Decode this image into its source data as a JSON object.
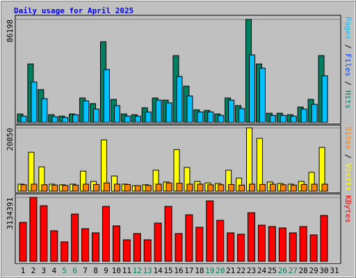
{
  "title": "Daily usage for April 2025",
  "chart_data": [
    {
      "type": "bar",
      "ylim": [
        0,
        86198
      ],
      "yticks": [
        86198
      ],
      "grid": true,
      "legend_separator": " / ",
      "legend": [
        {
          "name": "Pages",
          "color": "#00c0ff"
        },
        {
          "name": "Files",
          "color": "#0040ff"
        },
        {
          "name": "Hits",
          "color": "#008060"
        }
      ],
      "series": [
        {
          "name": "Hits",
          "color": "#008060",
          "values": [
            7000,
            48900,
            27400,
            6400,
            5200,
            7000,
            20400,
            15700,
            67500,
            19200,
            7000,
            6400,
            12200,
            20400,
            18600,
            55900,
            30300,
            10500,
            9900,
            7000,
            20400,
            14000,
            86198,
            48900,
            7600,
            7600,
            6400,
            12800,
            19200,
            55900,
            null
          ]
        },
        {
          "name": "Pages",
          "color": "#00c0ff",
          "values": [
            5200,
            33800,
            19800,
            4700,
            4100,
            6400,
            18000,
            11100,
            44300,
            14000,
            5200,
            5200,
            8700,
            18600,
            16300,
            38400,
            22100,
            8700,
            8700,
            5800,
            18600,
            11600,
            56500,
            45400,
            5800,
            5800,
            5200,
            11100,
            15100,
            39000,
            null
          ]
        }
      ]
    },
    {
      "type": "bar",
      "ylim": [
        0,
        20850
      ],
      "yticks": [
        20850
      ],
      "grid": true,
      "legend_separator": " / ",
      "legend": [
        {
          "name": "Sites",
          "color": "#ff8000"
        },
        {
          "name": "Visits",
          "color": "#ffff00"
        }
      ],
      "series": [
        {
          "name": "Visits",
          "color": "#ffff00",
          "values": [
            2300,
            12800,
            8000,
            2300,
            2100,
            2300,
            6600,
            3200,
            16900,
            5000,
            2300,
            1800,
            2100,
            6900,
            3000,
            13700,
            7800,
            3200,
            2700,
            2500,
            6900,
            4300,
            20850,
            17400,
            3000,
            2500,
            2300,
            3200,
            6200,
            14400,
            null
          ]
        },
        {
          "name": "Sites",
          "color": "#ff8000",
          "values": [
            2100,
            2300,
            2100,
            2000,
            1900,
            2000,
            2300,
            2200,
            2700,
            2300,
            2200,
            1800,
            1900,
            2300,
            2700,
            2600,
            2300,
            2300,
            2100,
            2100,
            2200,
            2000,
            2300,
            2200,
            2300,
            2100,
            2000,
            2200,
            2300,
            2300,
            null
          ]
        }
      ]
    },
    {
      "type": "bar",
      "ylim": [
        0,
        3134391
      ],
      "yticks": [
        3134391
      ],
      "grid": true,
      "legend": [
        {
          "name": "KBytes",
          "color": "#ff0000"
        }
      ],
      "series": [
        {
          "name": "KBytes",
          "color": "#ff0000",
          "values": [
            1908000,
            3134391,
            2726000,
            1499000,
            954000,
            2317000,
            1601000,
            1397000,
            2692000,
            1738000,
            1056000,
            1363000,
            1056000,
            1874000,
            2692000,
            1363000,
            2283000,
            1669000,
            2964000,
            2010000,
            1397000,
            1329000,
            2385000,
            1772000,
            1704000,
            1635000,
            1397000,
            1704000,
            1295000,
            2249000,
            null
          ]
        }
      ],
      "categories": [
        "1",
        "2",
        "3",
        "4",
        "5",
        "6",
        "7",
        "8",
        "9",
        "10",
        "11",
        "12",
        "13",
        "14",
        "15",
        "16",
        "17",
        "18",
        "19",
        "20",
        "21",
        "22",
        "23",
        "24",
        "25",
        "26",
        "27",
        "28",
        "29",
        "30",
        "31"
      ],
      "category_colors": [
        "#000",
        "#000",
        "#000",
        "#000",
        "#008060",
        "#008060",
        "#000",
        "#000",
        "#000",
        "#000",
        "#000",
        "#008060",
        "#008060",
        "#000",
        "#000",
        "#000",
        "#000",
        "#000",
        "#008060",
        "#008060",
        "#000",
        "#000",
        "#000",
        "#000",
        "#000",
        "#008060",
        "#008060",
        "#000",
        "#000",
        "#000",
        "#000"
      ]
    }
  ]
}
